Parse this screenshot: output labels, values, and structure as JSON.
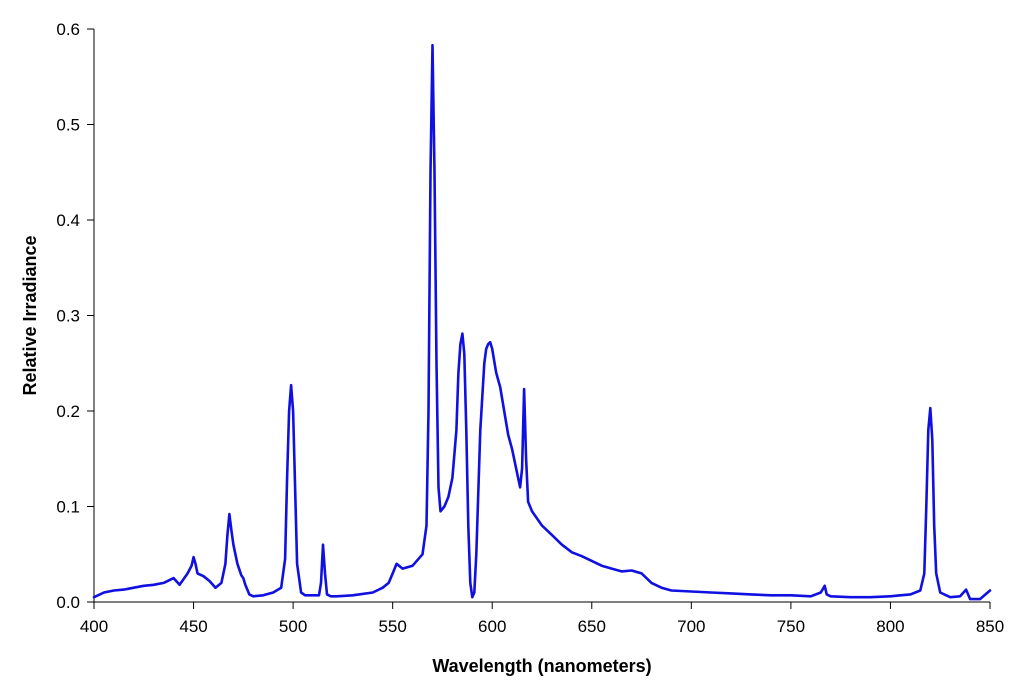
{
  "chart_data": {
    "type": "line",
    "title": "",
    "xlabel": "Wavelength (nanometers)",
    "ylabel": "Relative Irradiance",
    "xlim": [
      400,
      850
    ],
    "ylim": [
      0.0,
      0.6
    ],
    "x_ticks": [
      400,
      450,
      500,
      550,
      600,
      650,
      700,
      750,
      800,
      850
    ],
    "y_ticks": [
      "0.0",
      "0.1",
      "0.2",
      "0.3",
      "0.4",
      "0.5",
      "0.6"
    ],
    "grid": false,
    "legend": "none",
    "line_color": "#1010e0",
    "series": [
      {
        "x": [
          400,
          405,
          410,
          415,
          420,
          425,
          430,
          435,
          440,
          443,
          447,
          449,
          450,
          451,
          452,
          455,
          458,
          461,
          464,
          466,
          467,
          468,
          469,
          470,
          472,
          474,
          475,
          476,
          478,
          480,
          485,
          490,
          494,
          496,
          497,
          498,
          499,
          500,
          501,
          502,
          504,
          506,
          510,
          513,
          514,
          515,
          516,
          517,
          519,
          522,
          530,
          540,
          545,
          548,
          550,
          552,
          555,
          560,
          565,
          567,
          568,
          569,
          570,
          571,
          572,
          573,
          574,
          576,
          578,
          580,
          582,
          583,
          584,
          585,
          586,
          587,
          588,
          589,
          590,
          591,
          592,
          594,
          596,
          597,
          598,
          599,
          600,
          602,
          604,
          606,
          608,
          610,
          612,
          613,
          614,
          615,
          616,
          617,
          618,
          620,
          625,
          630,
          635,
          640,
          645,
          650,
          655,
          660,
          665,
          670,
          675,
          680,
          685,
          690,
          700,
          710,
          720,
          730,
          740,
          750,
          760,
          765,
          767,
          768,
          770,
          780,
          790,
          800,
          805,
          810,
          815,
          817,
          818,
          819,
          820,
          821,
          822,
          823,
          825,
          830,
          835,
          838,
          840,
          845,
          850
        ],
        "y": [
          0.005,
          0.01,
          0.012,
          0.013,
          0.015,
          0.017,
          0.018,
          0.02,
          0.025,
          0.018,
          0.03,
          0.038,
          0.047,
          0.04,
          0.03,
          0.027,
          0.022,
          0.015,
          0.02,
          0.04,
          0.07,
          0.092,
          0.075,
          0.06,
          0.04,
          0.028,
          0.025,
          0.018,
          0.008,
          0.006,
          0.007,
          0.01,
          0.015,
          0.045,
          0.13,
          0.2,
          0.227,
          0.2,
          0.12,
          0.04,
          0.01,
          0.007,
          0.007,
          0.007,
          0.02,
          0.06,
          0.03,
          0.008,
          0.006,
          0.006,
          0.007,
          0.01,
          0.015,
          0.02,
          0.03,
          0.04,
          0.035,
          0.038,
          0.05,
          0.08,
          0.2,
          0.45,
          0.583,
          0.45,
          0.25,
          0.12,
          0.095,
          0.1,
          0.11,
          0.13,
          0.18,
          0.24,
          0.27,
          0.281,
          0.26,
          0.18,
          0.08,
          0.02,
          0.005,
          0.01,
          0.05,
          0.18,
          0.25,
          0.265,
          0.27,
          0.272,
          0.265,
          0.24,
          0.225,
          0.2,
          0.175,
          0.16,
          0.14,
          0.13,
          0.12,
          0.14,
          0.223,
          0.15,
          0.105,
          0.095,
          0.08,
          0.07,
          0.06,
          0.052,
          0.048,
          0.043,
          0.038,
          0.035,
          0.032,
          0.033,
          0.03,
          0.02,
          0.015,
          0.012,
          0.011,
          0.01,
          0.009,
          0.008,
          0.007,
          0.007,
          0.006,
          0.01,
          0.017,
          0.008,
          0.006,
          0.005,
          0.005,
          0.006,
          0.007,
          0.008,
          0.012,
          0.03,
          0.1,
          0.18,
          0.203,
          0.17,
          0.08,
          0.03,
          0.01,
          0.005,
          0.006,
          0.013,
          0.003,
          0.003,
          0.012
        ]
      }
    ]
  }
}
